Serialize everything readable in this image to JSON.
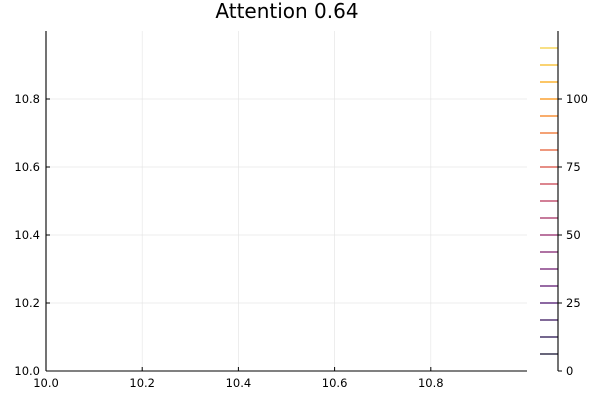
{
  "chart_data": {
    "type": "heatmap",
    "title": "Attention 0.64",
    "xlabel": "",
    "ylabel": "",
    "xlim": [
      10.0,
      11.0
    ],
    "ylim": [
      10.0,
      11.0
    ],
    "x_ticks": [
      10.0,
      10.2,
      10.4,
      10.6,
      10.8
    ],
    "x_tick_labels": [
      "10.0",
      "10.2",
      "10.4",
      "10.6",
      "10.8"
    ],
    "y_ticks": [
      10.0,
      10.2,
      10.4,
      10.6,
      10.8
    ],
    "y_tick_labels": [
      "10.0",
      "10.2",
      "10.4",
      "10.6",
      "10.8"
    ],
    "grid": true,
    "colorbar": {
      "range": [
        0,
        125
      ],
      "ticks": [
        0,
        25,
        50,
        75,
        100
      ],
      "tick_labels": [
        "0",
        "25",
        "50",
        "75",
        "100"
      ],
      "levels": [
        6.25,
        12.5,
        18.75,
        25,
        31.25,
        37.5,
        43.75,
        50,
        56.25,
        62.5,
        68.75,
        75,
        81.25,
        87.5,
        93.75,
        100,
        106.25,
        112.5,
        118.75
      ],
      "colormap": "inferno",
      "level_colors": [
        "#0e0a2b",
        "#220c4a",
        "#36105b",
        "#480f6a",
        "#5a136e",
        "#6d186e",
        "#7f1e6c",
        "#922568",
        "#a52c60",
        "#b73357",
        "#c73e4c",
        "#d74b3f",
        "#e45a31",
        "#ee6a23",
        "#f57c15",
        "#f98f0a",
        "#fba40a",
        "#f8b91d",
        "#f3ce3c"
      ]
    }
  }
}
